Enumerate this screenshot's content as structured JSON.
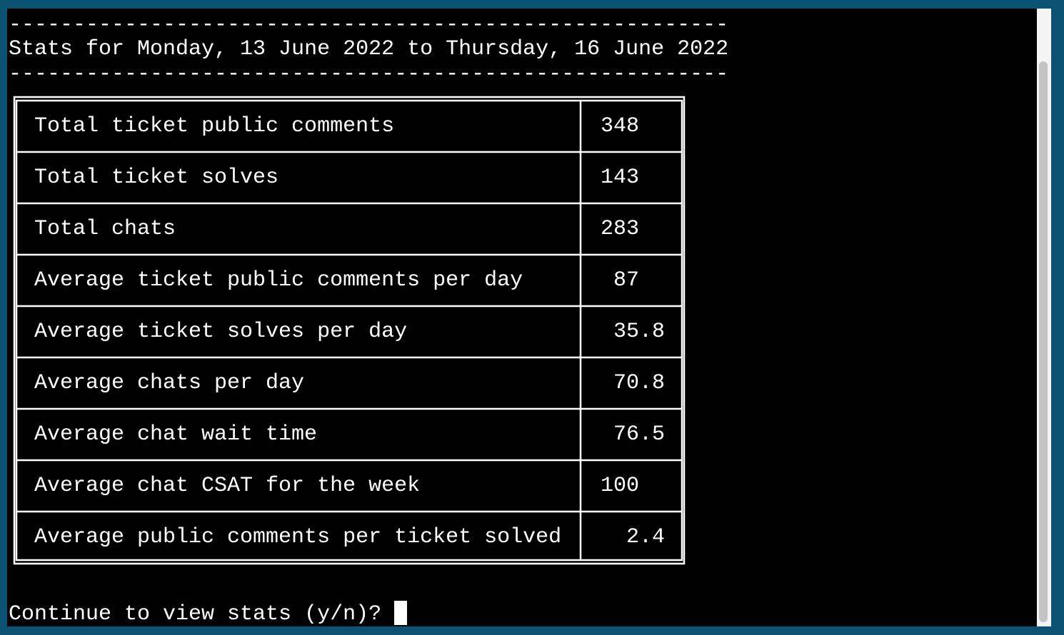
{
  "header": {
    "rule_top": "--------------------------------------------------------",
    "title": "Stats for Monday, 13 June 2022 to Thursday, 16 June 2022",
    "rule_bottom": "--------------------------------------------------------"
  },
  "table": {
    "rows": [
      [
        "Total ticket public comments",
        348
      ],
      [
        "Total ticket solves",
        143
      ],
      [
        "Total chats",
        283
      ],
      [
        "Average ticket public comments per day",
        87
      ],
      [
        "Average ticket solves per day",
        35.8
      ],
      [
        "Average chats per day",
        70.8
      ],
      [
        "Average chat wait time",
        76.5
      ],
      [
        "Average chat CSAT for the week",
        100
      ],
      [
        "Average public comments per ticket solved",
        2.4
      ]
    ]
  },
  "prompt": "Continue to view stats (y/n)?"
}
